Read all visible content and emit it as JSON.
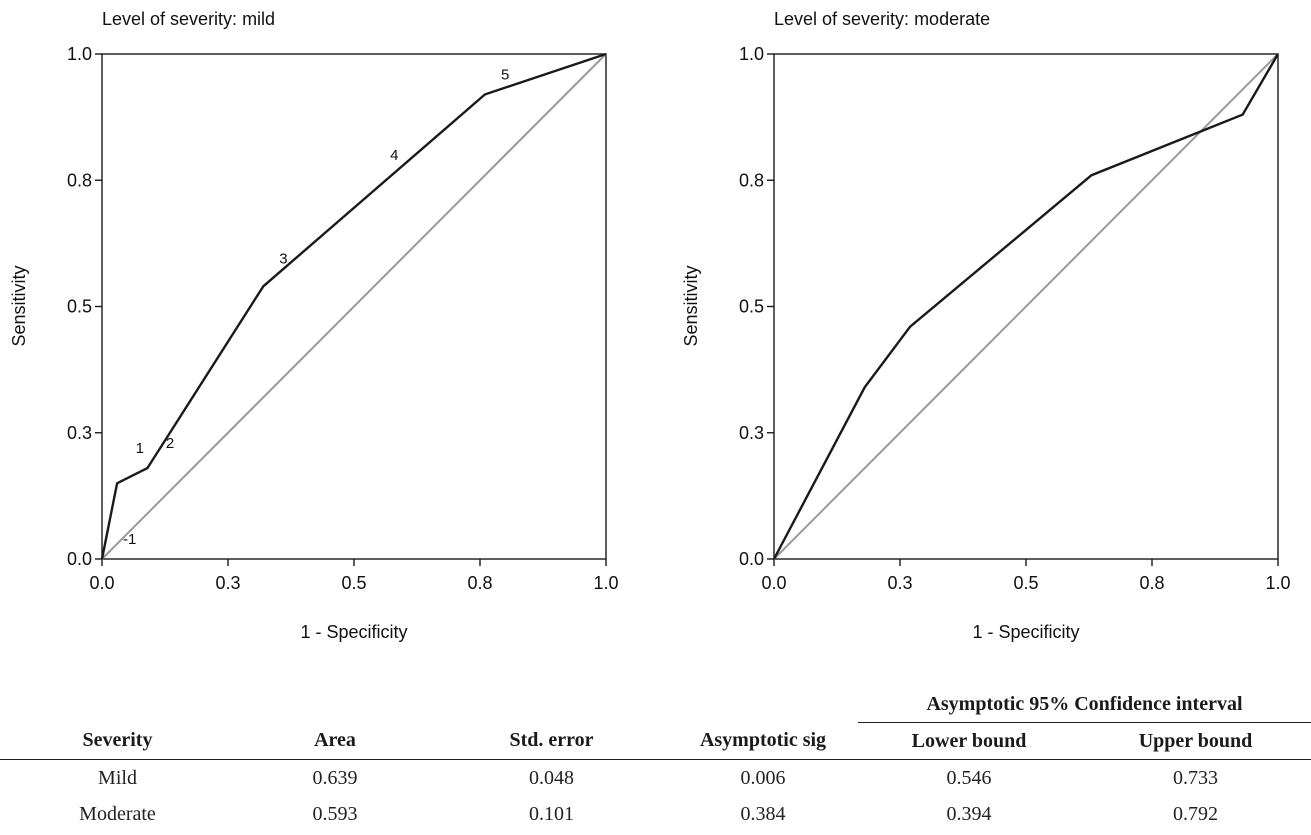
{
  "chart_data": [
    {
      "type": "line",
      "title": "Level of severity: mild",
      "xlabel": "1 - Specificity",
      "ylabel": "Sensitivity",
      "xlim": [
        0,
        1
      ],
      "ylim": [
        0,
        1
      ],
      "xticks": [
        "0.0",
        "0.3",
        "0.5",
        "0.8",
        "1.0"
      ],
      "yticks": [
        "0.0",
        "0.3",
        "0.5",
        "0.8",
        "1.0"
      ],
      "grid": false,
      "series": [
        {
          "color": "#1a1a1a",
          "x": [
            0.0,
            0.03,
            0.09,
            0.32,
            0.76,
            1.0
          ],
          "y": [
            0.0,
            0.15,
            0.18,
            0.54,
            0.92,
            1.0
          ]
        },
        {
          "color": "#999999",
          "x": [
            0.0,
            1.0
          ],
          "y": [
            0.0,
            1.0
          ]
        }
      ],
      "annotations": [
        {
          "text": "-1",
          "x": 0.055,
          "y": 0.03
        },
        {
          "text": "1",
          "x": 0.075,
          "y": 0.21
        },
        {
          "text": "2",
          "x": 0.135,
          "y": 0.22
        },
        {
          "text": "3",
          "x": 0.36,
          "y": 0.585
        },
        {
          "text": "4",
          "x": 0.58,
          "y": 0.79
        },
        {
          "text": "5",
          "x": 0.8,
          "y": 0.95
        }
      ]
    },
    {
      "type": "line",
      "title": "Level of severity: moderate",
      "xlabel": "1 - Specificity",
      "ylabel": "Sensitivity",
      "xlim": [
        0,
        1
      ],
      "ylim": [
        0,
        1
      ],
      "xticks": [
        "0.0",
        "0.3",
        "0.5",
        "0.8",
        "1.0"
      ],
      "yticks": [
        "0.0",
        "0.3",
        "0.5",
        "0.8",
        "1.0"
      ],
      "grid": false,
      "series": [
        {
          "color": "#1a1a1a",
          "x": [
            0.0,
            0.18,
            0.27,
            0.63,
            0.93,
            1.0
          ],
          "y": [
            0.0,
            0.34,
            0.46,
            0.76,
            0.88,
            1.0
          ]
        },
        {
          "color": "#999999",
          "x": [
            0.0,
            1.0
          ],
          "y": [
            0.0,
            1.0
          ]
        }
      ],
      "annotations": []
    }
  ],
  "table": {
    "group_header": "Asymptotic 95% Confidence interval",
    "headers": [
      "Severity",
      "Area",
      "Std. error",
      "Asymptotic sig",
      "Lower bound",
      "Upper bound"
    ],
    "rows": [
      [
        "Mild",
        "0.639",
        "0.048",
        "0.006",
        "0.546",
        "0.733"
      ],
      [
        "Moderate",
        "0.593",
        "0.101",
        "0.384",
        "0.394",
        "0.792"
      ]
    ]
  }
}
